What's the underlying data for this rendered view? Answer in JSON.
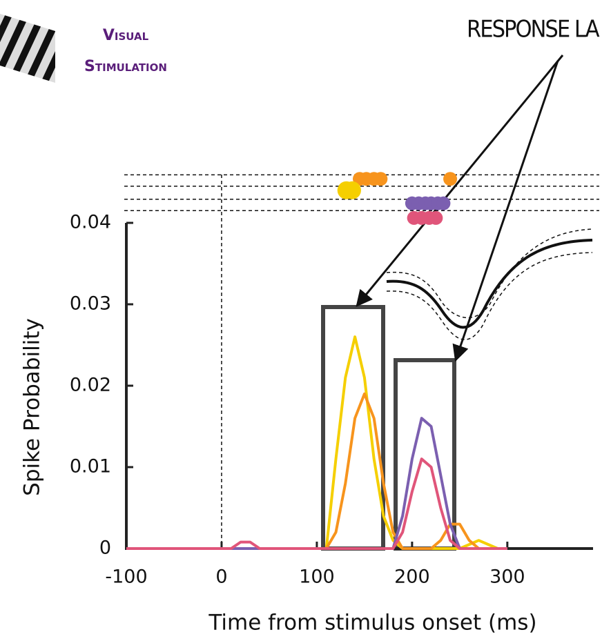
{
  "chart_data": {
    "type": "line",
    "annotations": [
      "Visual",
      "Stimulation",
      "RESPONSE LA"
    ],
    "xlabel": "Time from stimulus onset (ms)",
    "ylabel": "Spike Probability",
    "x": [
      -100,
      0,
      10,
      20,
      30,
      40,
      50,
      100,
      110,
      120,
      130,
      140,
      150,
      160,
      170,
      180,
      190,
      200,
      210,
      220,
      230,
      240,
      250,
      260,
      270,
      280,
      290,
      300
    ],
    "series": [
      {
        "color": "#f5cf00",
        "values": [
          0,
          0,
          0,
          0,
          0,
          0,
          0,
          0,
          0,
          0.011,
          0.021,
          0.026,
          0.021,
          0.011,
          0.004,
          0.001,
          0,
          0,
          0,
          0,
          0,
          0,
          0,
          0.0005,
          0.001,
          0.0005,
          0,
          0
        ]
      },
      {
        "color": "#f7941d",
        "values": [
          0,
          0,
          0,
          0,
          0,
          0,
          0,
          0,
          0,
          0.002,
          0.008,
          0.016,
          0.019,
          0.016,
          0.008,
          0.002,
          0,
          0,
          0,
          0,
          0.001,
          0.003,
          0.003,
          0.001,
          0,
          0,
          0,
          0
        ]
      },
      {
        "color": "#7b5fb0",
        "values": [
          0,
          0,
          0,
          0,
          0,
          0,
          0,
          0,
          0,
          0,
          0,
          0,
          0,
          0,
          0,
          0,
          0.004,
          0.011,
          0.016,
          0.015,
          0.009,
          0.003,
          0,
          0,
          0,
          0,
          0,
          0
        ]
      },
      {
        "color": "#e0557a",
        "values": [
          0,
          0,
          0,
          0.0008,
          0.0008,
          0,
          0,
          0,
          0,
          0,
          0,
          0,
          0,
          0,
          0,
          0,
          0.002,
          0.007,
          0.011,
          0.01,
          0.005,
          0.001,
          0,
          0,
          0,
          0,
          0,
          0
        ]
      }
    ],
    "markers": [
      {
        "color": "#f7941d",
        "x": [
          145,
          152,
          160,
          167,
          240
        ],
        "y": [
          0.0454,
          0.0454,
          0.0454,
          0.0454,
          0.0454
        ]
      },
      {
        "color": "#f5cf00",
        "x": [
          131,
          137
        ],
        "y": [
          0.044,
          0.044
        ]
      },
      {
        "color": "#7b5fb0",
        "x": [
          200,
          207,
          214,
          220,
          227,
          233
        ],
        "y": [
          0.0424,
          0.0424,
          0.0424,
          0.0424,
          0.0424,
          0.0424
        ]
      },
      {
        "color": "#e0557a",
        "x": [
          202,
          210,
          218,
          225
        ],
        "y": [
          0.0406,
          0.0406,
          0.0406,
          0.0406
        ]
      }
    ],
    "latency_rows": [
      0.0459,
      0.0445,
      0.0429,
      0.0415
    ],
    "onset": 0,
    "xlim": [
      -100,
      390
    ],
    "xticks": [
      -100,
      0,
      100,
      200,
      300
    ],
    "ylim": [
      0,
      0.04
    ],
    "yticks": [
      0,
      0.01,
      0.02,
      0.03,
      0.04
    ]
  }
}
